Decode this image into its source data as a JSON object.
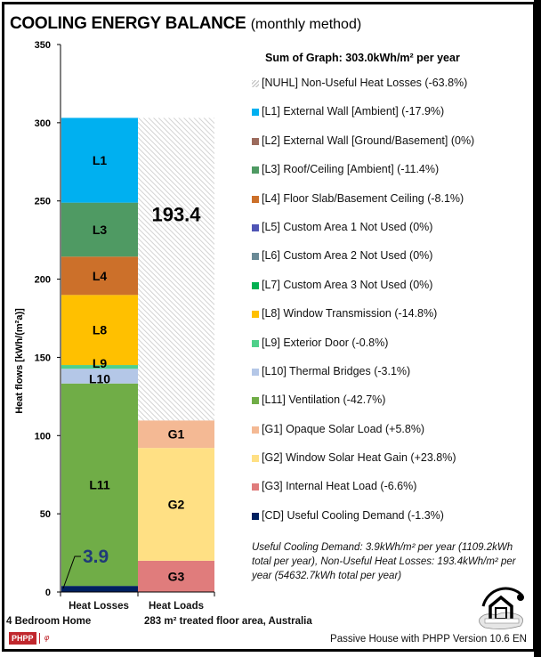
{
  "title": {
    "main": "COOLING ENERGY BALANCE",
    "sub": "(monthly method)"
  },
  "legend_title": "Sum of Graph: 303.0kWh/m² per year",
  "legend": [
    {
      "id": "NUHL",
      "label": "[NUHL] Non-Useful Heat Losses (-63.8%)",
      "color": "#d9d9d9",
      "pattern": "hatch"
    },
    {
      "id": "L1",
      "label": "[L1] External Wall [Ambient] (-17.9%)",
      "color": "#00b0f0"
    },
    {
      "id": "L2",
      "label": "[L2] External Wall [Ground/Basement] (0%)",
      "color": "#9c6b5d"
    },
    {
      "id": "L3",
      "label": "[L3] Roof/Ceiling [Ambient] (-11.4%)",
      "color": "#4f9a63"
    },
    {
      "id": "L4",
      "label": "[L4] Floor Slab/Basement Ceiling (-8.1%)",
      "color": "#cc702a"
    },
    {
      "id": "L5",
      "label": "[L5] Custom Area 1 Not Used (0%)",
      "color": "#4f55b5"
    },
    {
      "id": "L6",
      "label": "[L6] Custom Area 2 Not Used (0%)",
      "color": "#6a8a96"
    },
    {
      "id": "L7",
      "label": "[L7] Custom Area 3 Not Used (0%)",
      "color": "#00b050"
    },
    {
      "id": "L8",
      "label": "[L8] Window Transmission (-14.8%)",
      "color": "#ffc000"
    },
    {
      "id": "L9",
      "label": "[L9] Exterior Door (-0.8%)",
      "color": "#4fd08a"
    },
    {
      "id": "L10",
      "label": "[L10] Thermal Bridges (-3.1%)",
      "color": "#b4c7e7"
    },
    {
      "id": "L11",
      "label": "[L11] Ventilation (-42.7%)",
      "color": "#70ad47"
    },
    {
      "id": "G1",
      "label": "[G1] Opaque Solar Load (+5.8%)",
      "color": "#f4b994"
    },
    {
      "id": "G2",
      "label": "[G2] Window Solar Heat Gain (+23.8%)",
      "color": "#ffe084"
    },
    {
      "id": "G3",
      "label": "[G3] Internal Heat Load (-6.6%)",
      "color": "#e07c7c"
    },
    {
      "id": "CD",
      "label": "[CD] Useful Cooling Demand (-1.3%)",
      "color": "#002060"
    }
  ],
  "note": "Useful Cooling Demand: 3.9kWh/m² per year (1109.2kWh total per year), Non-Useful Heat Losses: 193.4kWh/m² per year (54632.7kWh total per year)",
  "footer": "Passive House with PHPP Version 10.6 EN",
  "phpp_badge": "PHPP",
  "chart_data": {
    "type": "bar",
    "stacked": true,
    "title": "COOLING ENERGY BALANCE (monthly method)",
    "ylabel": "Heat flows [kWh/(m²a)]",
    "xlabel": "",
    "ylim": [
      0,
      350
    ],
    "yticks": [
      0,
      50,
      100,
      150,
      200,
      250,
      300,
      350
    ],
    "categories": [
      "Heat Losses",
      "Heat Loads"
    ],
    "category_sublabels": [
      "4 Bedroom Home",
      "283 m² treated floor area, Australia"
    ],
    "grid": false,
    "legend_position": "right",
    "stacks": [
      {
        "category": "Heat Losses",
        "segments": [
          {
            "id": "CD",
            "label": "",
            "value": 3.9
          },
          {
            "id": "L11",
            "label": "L11",
            "value": 129.4
          },
          {
            "id": "L10",
            "label": "L10",
            "value": 9.4
          },
          {
            "id": "L9",
            "label": "L9",
            "value": 2.4
          },
          {
            "id": "L8",
            "label": "L8",
            "value": 44.8
          },
          {
            "id": "L4",
            "label": "L4",
            "value": 24.5
          },
          {
            "id": "L3",
            "label": "L3",
            "value": 34.5
          },
          {
            "id": "L1",
            "label": "L1",
            "value": 54.2
          }
        ]
      },
      {
        "category": "Heat Loads",
        "segments": [
          {
            "id": "G3",
            "label": "G3",
            "value": 20.0
          },
          {
            "id": "G2",
            "label": "G2",
            "value": 72.1
          },
          {
            "id": "G1",
            "label": "G1",
            "value": 17.6
          },
          {
            "id": "NUHL",
            "label": "193.4",
            "value": 193.4
          }
        ]
      }
    ],
    "annotations": [
      {
        "text": "3.9",
        "target": "CD",
        "color": "#1f3a78"
      }
    ],
    "total": 303.0
  }
}
